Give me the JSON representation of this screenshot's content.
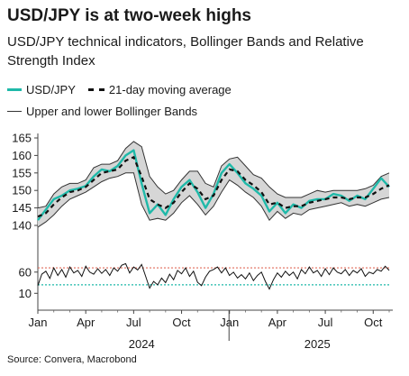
{
  "title": "USD/JPY is at two-week highs",
  "subtitle": "USD/JPY technical indicators, Bollinger Bands and Relative Strength Index",
  "legend": {
    "usdjpy": "USD/JPY",
    "ma": "21-day moving average",
    "bands": "Upper and lower Bollinger Bands"
  },
  "source": "Source: Convera, Macrobond",
  "colors": {
    "usdjpy": "#1fb9a9",
    "ma": "#111111",
    "band_fill": "#d6d6d6",
    "band_line": "#333333",
    "rsi_70": "#e06b5a",
    "rsi_30": "#1fb9a9"
  },
  "chart_data": [
    {
      "type": "line",
      "panel": "price",
      "y_ticks": [
        140,
        145,
        150,
        155,
        160,
        165
      ],
      "ylim": [
        140,
        165
      ],
      "x_ticks": [
        "Jan",
        "Apr",
        "Jul",
        "Oct",
        "Jan",
        "Apr",
        "Jul",
        "Oct"
      ],
      "x_years": [
        "2024",
        "2025"
      ],
      "x": [
        0,
        0.5,
        1,
        1.5,
        2,
        2.5,
        3,
        3.5,
        4,
        4.5,
        5,
        5.5,
        6,
        6.5,
        7,
        7.5,
        8,
        8.5,
        9,
        9.5,
        10,
        10.5,
        11,
        11.5,
        12,
        12.5,
        13,
        13.5,
        14,
        14.5,
        15,
        15.5,
        16,
        16.5,
        17,
        17.5,
        18,
        18.5,
        19,
        19.5,
        20,
        20.5,
        21,
        21.5,
        22
      ],
      "series": [
        {
          "name": "USD/JPY",
          "values": [
            141.5,
            144.5,
            147.5,
            148.5,
            150.0,
            150.5,
            151.3,
            154.0,
            156.0,
            155.5,
            157.0,
            160.0,
            161.5,
            152.0,
            143.5,
            146.0,
            143.0,
            147.5,
            151.0,
            153.0,
            149.5,
            145.0,
            149.0,
            155.0,
            157.5,
            155.0,
            152.0,
            150.5,
            148.5,
            144.0,
            146.5,
            143.5,
            146.0,
            145.0,
            147.0,
            147.5,
            147.5,
            149.0,
            148.5,
            147.0,
            148.5,
            147.5,
            150.5,
            153.5,
            151.0
          ]
        },
        {
          "name": "21-day moving average",
          "values": [
            142.5,
            143.5,
            146.0,
            148.0,
            149.5,
            150.0,
            151.0,
            153.0,
            155.0,
            155.5,
            156.0,
            158.5,
            159.5,
            154.0,
            147.5,
            146.0,
            145.0,
            146.5,
            149.5,
            152.0,
            150.5,
            147.5,
            148.5,
            153.0,
            156.0,
            155.5,
            153.0,
            151.5,
            149.5,
            146.0,
            146.5,
            145.0,
            145.5,
            145.5,
            146.5,
            147.0,
            147.5,
            148.0,
            148.0,
            147.5,
            148.0,
            148.0,
            149.0,
            150.5,
            151.5
          ]
        },
        {
          "name": "Upper Bollinger Band",
          "values": [
            145.0,
            145.5,
            149.0,
            151.0,
            152.0,
            152.0,
            153.0,
            156.5,
            157.5,
            157.5,
            158.5,
            162.0,
            164.0,
            162.5,
            154.0,
            151.0,
            149.0,
            150.0,
            153.0,
            155.5,
            155.5,
            152.0,
            151.0,
            157.0,
            159.0,
            159.5,
            157.0,
            154.5,
            153.5,
            151.0,
            149.0,
            148.0,
            148.0,
            148.0,
            149.0,
            150.0,
            149.5,
            150.0,
            150.0,
            150.0,
            150.0,
            150.5,
            151.5,
            154.0,
            155.0
          ]
        },
        {
          "name": "Lower Bollinger Band",
          "values": [
            139.5,
            141.0,
            143.0,
            145.5,
            147.5,
            148.5,
            149.5,
            151.0,
            152.5,
            153.5,
            154.0,
            155.0,
            155.0,
            146.0,
            141.5,
            142.0,
            141.5,
            143.5,
            146.5,
            148.5,
            146.0,
            143.0,
            145.5,
            149.5,
            153.0,
            151.5,
            149.5,
            148.0,
            145.5,
            141.5,
            144.0,
            142.0,
            143.5,
            143.0,
            144.5,
            145.0,
            145.5,
            146.0,
            146.5,
            145.5,
            146.0,
            145.5,
            146.5,
            147.5,
            148.0
          ]
        }
      ]
    },
    {
      "type": "line",
      "panel": "rsi",
      "y_ticks": [
        10,
        60
      ],
      "ylim": [
        0,
        85
      ],
      "reference_lines": [
        70,
        30
      ],
      "x": [
        0,
        0.25,
        0.5,
        0.75,
        1,
        1.25,
        1.5,
        1.75,
        2,
        2.25,
        2.5,
        2.75,
        3,
        3.25,
        3.5,
        3.75,
        4,
        4.25,
        4.5,
        4.75,
        5,
        5.25,
        5.5,
        5.75,
        6,
        6.25,
        6.5,
        6.75,
        7,
        7.25,
        7.5,
        7.75,
        8,
        8.25,
        8.5,
        8.75,
        9,
        9.25,
        9.5,
        9.75,
        10,
        10.25,
        10.5,
        10.75,
        11,
        11.25,
        11.5,
        11.75,
        12,
        12.25,
        12.5,
        12.75,
        13,
        13.25,
        13.5,
        13.75,
        14,
        14.25,
        14.5,
        14.75,
        15,
        15.25,
        15.5,
        15.75,
        16,
        16.25,
        16.5,
        16.75,
        17,
        17.25,
        17.5,
        17.75,
        18,
        18.25,
        18.5,
        18.75,
        19,
        19.25,
        19.5,
        19.75,
        20,
        20.25,
        20.5,
        20.75,
        21,
        21.25,
        21.5,
        21.75,
        22
      ],
      "series": [
        {
          "name": "RSI",
          "values": [
            28,
            55,
            62,
            45,
            70,
            52,
            66,
            48,
            72,
            58,
            64,
            50,
            74,
            60,
            55,
            68,
            57,
            66,
            52,
            70,
            62,
            76,
            80,
            58,
            72,
            65,
            78,
            50,
            22,
            38,
            30,
            46,
            35,
            55,
            42,
            64,
            56,
            70,
            50,
            62,
            36,
            28,
            48,
            62,
            66,
            72,
            58,
            70,
            52,
            60,
            46,
            54,
            44,
            58,
            40,
            52,
            60,
            38,
            20,
            42,
            58,
            48,
            62,
            52,
            60,
            44,
            66,
            56,
            72,
            58,
            64,
            50,
            68,
            54,
            70,
            60,
            56,
            66,
            52,
            64,
            58,
            68,
            50,
            60,
            56,
            66,
            62,
            74,
            64
          ]
        }
      ]
    }
  ]
}
